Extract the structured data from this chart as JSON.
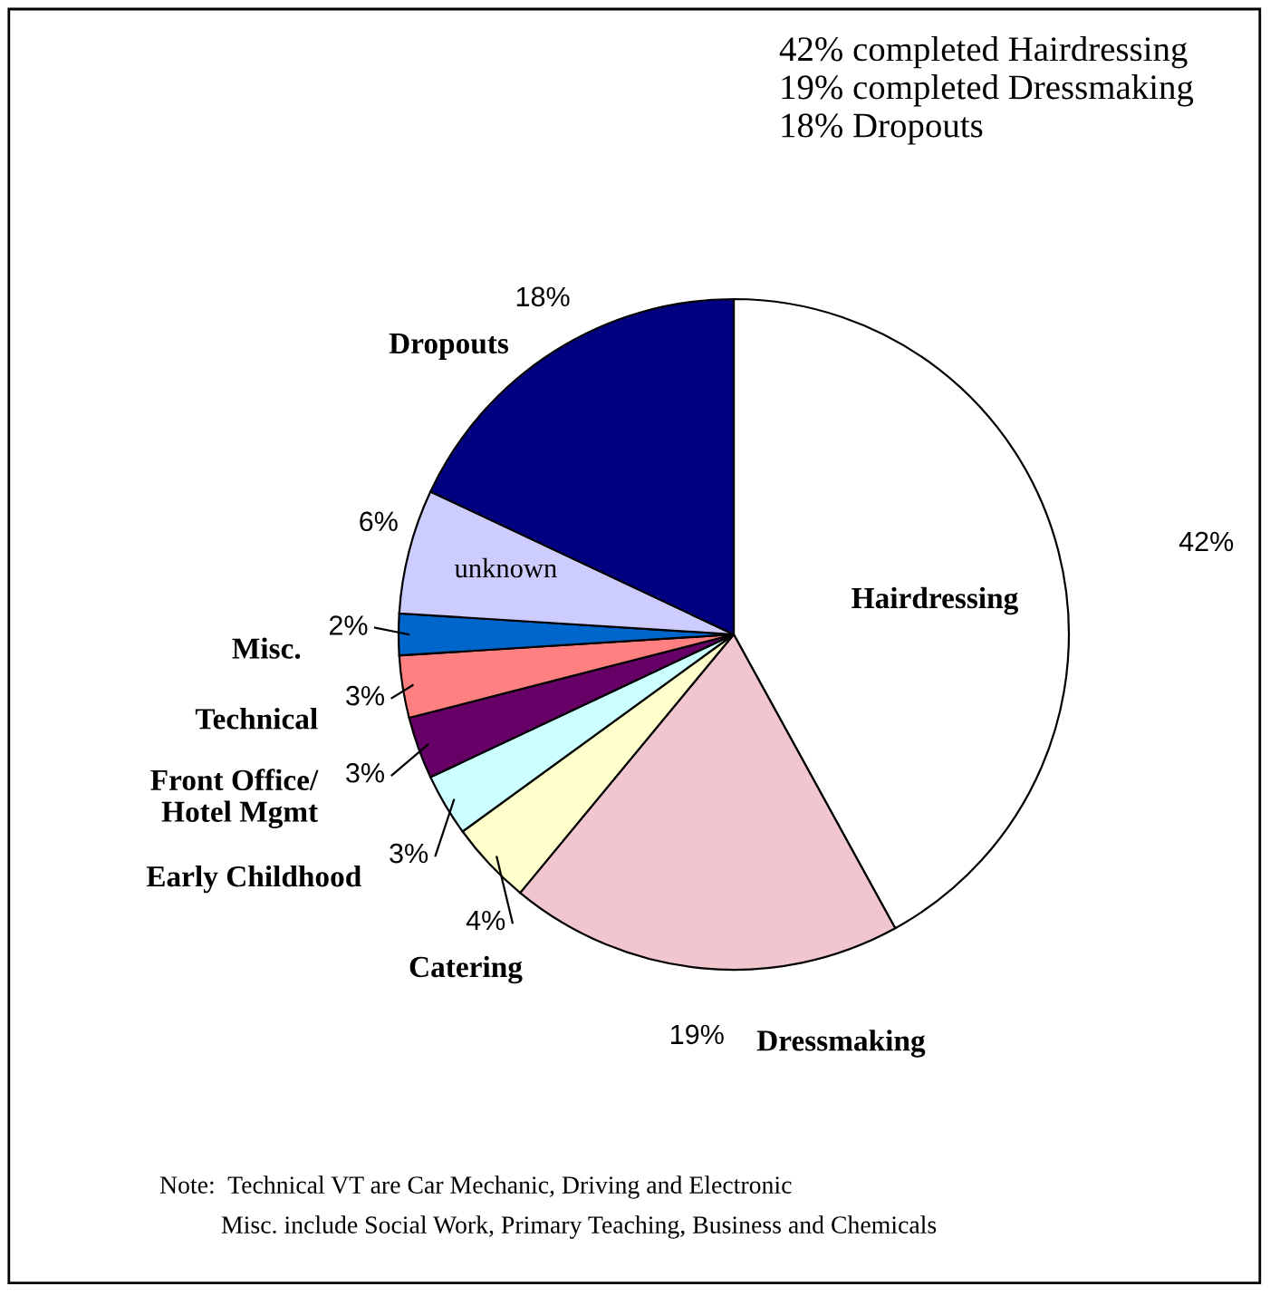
{
  "chart_data": {
    "type": "pie",
    "categories": [
      "Hairdressing",
      "Dressmaking",
      "Catering",
      "Early Childhood",
      "Front Office/\nHotel Mgmt",
      "Technical",
      "Misc.",
      "unknown",
      "Dropouts"
    ],
    "values": [
      42,
      19,
      4,
      3,
      3,
      3,
      2,
      6,
      18
    ],
    "value_labels": [
      "42%",
      "19%",
      "4%",
      "3%",
      "3%",
      "3%",
      "2%",
      "6%",
      "18%"
    ],
    "colors": [
      "#ffffff",
      "#f2c6cf",
      "#ffffcc",
      "#ccffff",
      "#660066",
      "#ff8080",
      "#0066cc",
      "#ccccff",
      "#000080"
    ],
    "annotations": [
      "42% completed Hairdressing\n19% completed Dressmaking\n18% Dropouts",
      "Note:  Technical VT are Car Mechanic, Driving and Electronic",
      "Misc. include Social Work, Primary Teaching, Business and Chemicals"
    ],
    "legend": false
  }
}
